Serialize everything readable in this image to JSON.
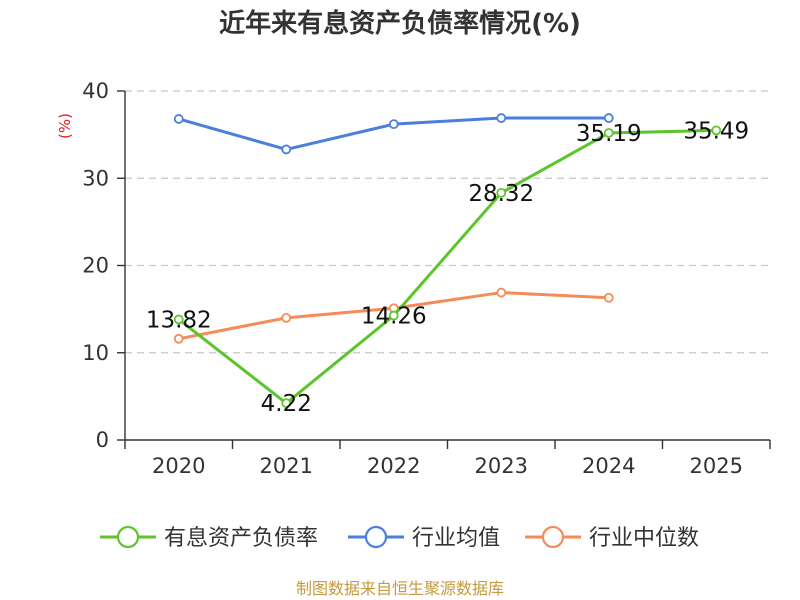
{
  "chart_data": {
    "type": "line",
    "title": "近年来有息资产负债率情况(%)",
    "ylabel": "(%)",
    "xlabel": "",
    "categories": [
      "2020",
      "2021",
      "2022",
      "2023",
      "2024",
      "2025"
    ],
    "ylim": [
      0,
      40
    ],
    "yticks": [
      0,
      10,
      20,
      30,
      40
    ],
    "grid": true,
    "legend_position": "bottom",
    "series": [
      {
        "name": "有息资产负债率",
        "color": "#5cc52b",
        "values": [
          13.82,
          4.22,
          14.26,
          28.32,
          35.19,
          35.49
        ],
        "labels": [
          "13.82",
          "4.22",
          "14.26",
          "28.32",
          "35.19",
          "35.49"
        ]
      },
      {
        "name": "行业均值",
        "color": "#4a7fdc",
        "values": [
          36.8,
          33.3,
          36.2,
          36.9,
          36.9,
          null
        ]
      },
      {
        "name": "行业中位数",
        "color": "#f58b57",
        "values": [
          11.6,
          14.0,
          15.1,
          16.9,
          16.3,
          null
        ]
      }
    ]
  },
  "source": "制图数据来自恒生聚源数据库"
}
